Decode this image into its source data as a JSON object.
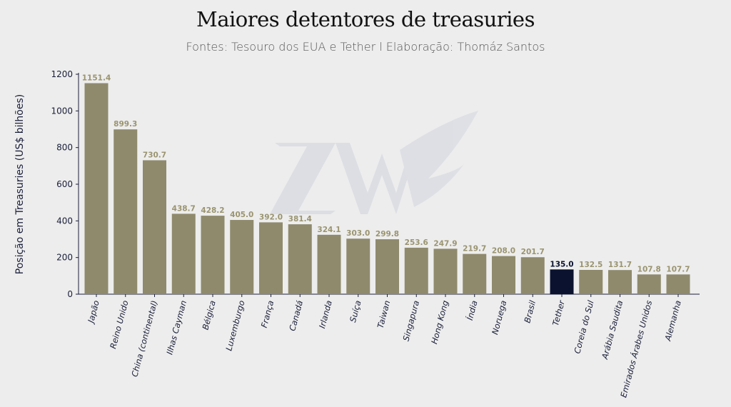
{
  "chart_data": {
    "type": "bar",
    "title": "Maiores detentores de treasuries",
    "subtitle": "Fontes: Tesouro dos EUA e Tether l Elaboração: Thomáz Santos",
    "xlabel": "",
    "ylabel": "Posição em Treasuries (US$ bilhões)",
    "ylim": [
      0,
      1200
    ],
    "yticks": [
      0,
      200,
      400,
      600,
      800,
      1000,
      1200
    ],
    "grid": false,
    "categories": [
      "Japão",
      "Reino Unido",
      "China (continental)",
      "Ilhas Cayman",
      "Bélgica",
      "Luxemburgo",
      "França",
      "Canadá",
      "Irlanda",
      "Suíça",
      "Taiwan",
      "Singapura",
      "Hong Kong",
      "Índia",
      "Noruega",
      "Brasil",
      "Tether",
      "Coreia do Sul",
      "Arábia Saudita",
      "Emirados Árabes Unidos",
      "Alemanha"
    ],
    "values": [
      1151.4,
      899.3,
      730.7,
      438.7,
      428.2,
      405.0,
      392.0,
      381.4,
      324.1,
      303.0,
      299.8,
      253.6,
      247.9,
      219.7,
      208.0,
      201.7,
      135.0,
      132.5,
      131.7,
      107.8,
      107.7
    ],
    "highlight": "Tether",
    "colors": {
      "bar": "#8f8a6c",
      "highlight": "#0b1230",
      "label": "#9a9470",
      "highlight_label": "#0b1230",
      "axis": "#1a1f3a"
    },
    "watermark": "ZANELLA WEALTH"
  }
}
